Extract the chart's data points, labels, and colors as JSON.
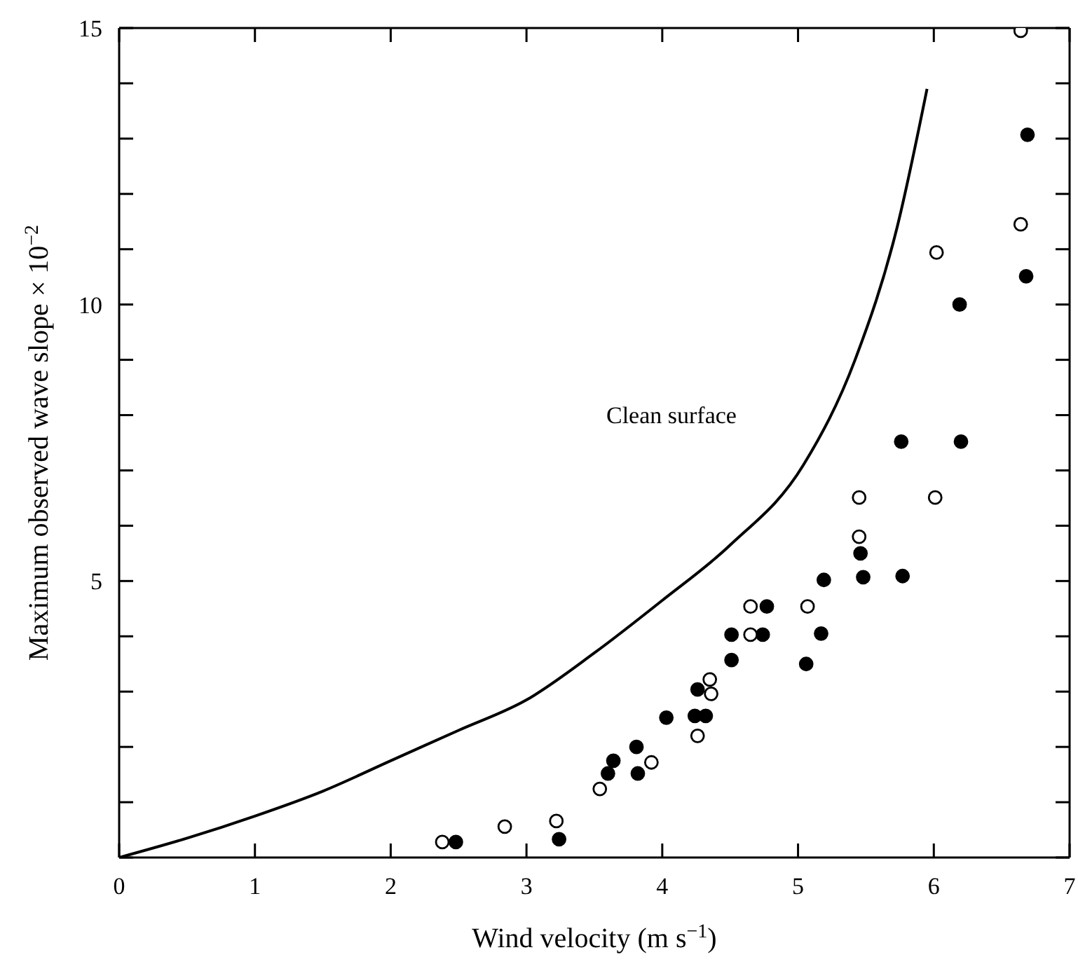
{
  "chart_data": {
    "type": "scatter",
    "xlabel": "Wind velocity (m s$^{−1}$)",
    "ylabel": "Maximum observed wave slope × 10$^{−2}$",
    "xlim": [
      0,
      7
    ],
    "xticks": [
      0,
      1,
      2,
      3,
      4,
      5,
      6,
      7
    ],
    "ylim": [
      0,
      15
    ],
    "yticks": [
      {
        "value": 0,
        "label": null
      },
      {
        "value": 1,
        "label": null
      },
      {
        "value": 2,
        "label": null
      },
      {
        "value": 3,
        "label": null
      },
      {
        "value": 4,
        "label": null
      },
      5,
      {
        "value": 6,
        "label": null
      },
      {
        "value": 7,
        "label": null
      },
      {
        "value": 8,
        "label": null
      },
      {
        "value": 9,
        "label": null
      },
      10,
      {
        "value": 11,
        "label": null
      },
      {
        "value": 12,
        "label": null
      },
      {
        "value": 13,
        "label": null
      },
      {
        "value": 14,
        "label": null
      },
      15
    ],
    "grid": false,
    "legend": false,
    "series": [
      {
        "type": "line",
        "name": "Clean surface",
        "color": "#000000",
        "x": [
          0,
          0.5,
          1,
          1.5,
          2,
          2.5,
          3,
          3.5,
          4,
          4.5,
          5.04,
          5.42,
          5.73,
          5.95
        ],
        "values": [
          0,
          0.35,
          0.75,
          1.2,
          1.75,
          2.3,
          2.85,
          3.7,
          4.65,
          5.65,
          7.1,
          9.0,
          11.4,
          13.9
        ]
      },
      {
        "marker": "circle",
        "color": "#000000",
        "x": [
          2.48,
          3.24,
          3.64,
          3.6,
          3.81,
          3.82,
          4.03,
          4.26,
          4.24,
          4.32,
          4.51,
          4.51,
          4.74,
          4.77,
          5.06,
          5.17,
          5.19,
          5.46,
          5.48,
          5.77,
          5.76,
          6.2,
          6.19,
          6.68,
          6.69
        ],
        "values": [
          0.28,
          0.33,
          1.75,
          1.52,
          2.0,
          1.52,
          2.53,
          3.04,
          2.56,
          2.56,
          4.03,
          3.57,
          4.03,
          4.54,
          3.5,
          4.05,
          5.02,
          5.5,
          5.07,
          5.09,
          7.52,
          7.52,
          10.0,
          10.51,
          13.07
        ]
      },
      {
        "marker": "circle",
        "color": "#ffffff",
        "x": [
          2.38,
          2.84,
          3.22,
          3.54,
          3.92,
          4.26,
          4.35,
          4.36,
          4.65,
          4.65,
          5.07,
          5.45,
          5.45,
          6.01,
          6.02,
          6.64,
          6.64
        ],
        "values": [
          0.28,
          0.56,
          0.66,
          1.24,
          1.72,
          2.2,
          3.22,
          2.96,
          4.54,
          4.03,
          4.54,
          5.8,
          6.51,
          6.51,
          10.94,
          11.45,
          14.95
        ]
      }
    ]
  }
}
